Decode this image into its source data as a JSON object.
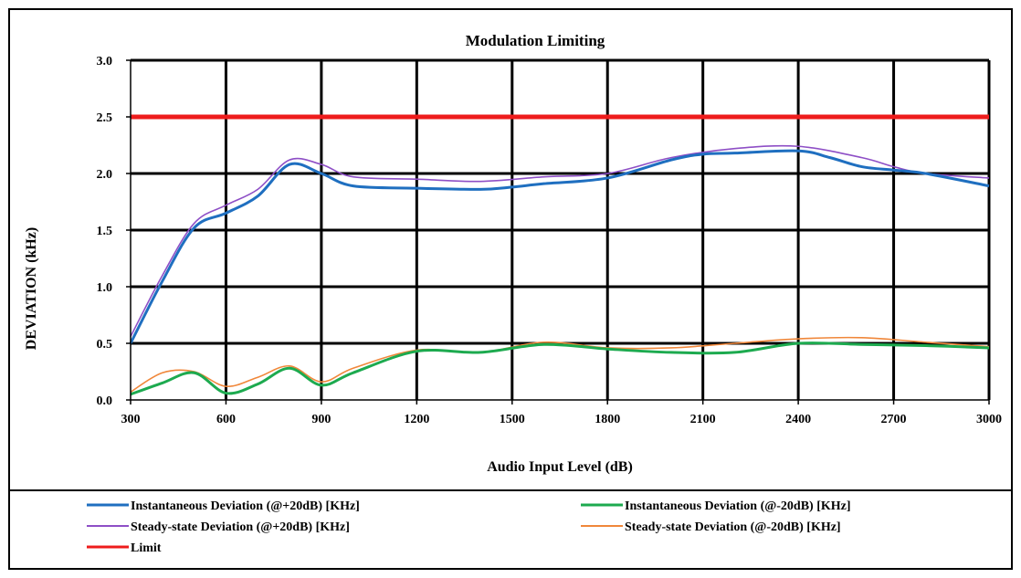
{
  "chart_data": {
    "type": "line",
    "title": "Modulation Limiting",
    "xlabel": "Audio Input Level (dB)",
    "ylabel": "DEVIATION (kHz)",
    "xlim": [
      300,
      3000
    ],
    "ylim": [
      0,
      3
    ],
    "xticks": [
      300,
      600,
      900,
      1200,
      1500,
      1800,
      2100,
      2400,
      2700,
      3000
    ],
    "xtick_labels": [
      "300",
      "600",
      "900",
      "1200",
      "1500",
      "1800",
      "2100",
      "2400",
      "2700",
      "3000"
    ],
    "yticks": [
      0,
      0.5,
      1,
      1.5,
      2,
      2.5,
      3
    ],
    "ytick_labels": [
      "0.0",
      "0.5",
      "1.0",
      "1.5",
      "2.0",
      "2.5",
      "3.0"
    ],
    "grid": true,
    "legend_position": "bottom",
    "series": [
      {
        "name": "Instantaneous Deviation (@+20dB) [KHz]",
        "color": "#1f6fc0",
        "width": 3,
        "points": [
          [
            300,
            0.5
          ],
          [
            400,
            1.05
          ],
          [
            500,
            1.52
          ],
          [
            600,
            1.65
          ],
          [
            700,
            1.8
          ],
          [
            800,
            2.08
          ],
          [
            900,
            2.0
          ],
          [
            1000,
            1.89
          ],
          [
            1200,
            1.87
          ],
          [
            1400,
            1.86
          ],
          [
            1500,
            1.88
          ],
          [
            1600,
            1.91
          ],
          [
            1800,
            1.96
          ],
          [
            2000,
            2.12
          ],
          [
            2100,
            2.17
          ],
          [
            2200,
            2.18
          ],
          [
            2400,
            2.2
          ],
          [
            2500,
            2.14
          ],
          [
            2600,
            2.06
          ],
          [
            2700,
            2.03
          ],
          [
            2800,
            2.0
          ],
          [
            3000,
            1.89
          ]
        ]
      },
      {
        "name": "Instantaneous Deviation (@-20dB) [KHz]",
        "color": "#1daa4f",
        "width": 3,
        "points": [
          [
            300,
            0.05
          ],
          [
            400,
            0.15
          ],
          [
            500,
            0.24
          ],
          [
            600,
            0.06
          ],
          [
            700,
            0.14
          ],
          [
            800,
            0.28
          ],
          [
            900,
            0.13
          ],
          [
            1000,
            0.24
          ],
          [
            1200,
            0.43
          ],
          [
            1400,
            0.42
          ],
          [
            1600,
            0.49
          ],
          [
            1800,
            0.45
          ],
          [
            2000,
            0.42
          ],
          [
            2200,
            0.42
          ],
          [
            2400,
            0.5
          ],
          [
            2600,
            0.49
          ],
          [
            2800,
            0.48
          ],
          [
            3000,
            0.46
          ]
        ]
      },
      {
        "name": "Steady-state Deviation (@+20dB) [KHz]",
        "color": "#8e4fc6",
        "width": 1.6,
        "points": [
          [
            300,
            0.56
          ],
          [
            400,
            1.1
          ],
          [
            500,
            1.56
          ],
          [
            600,
            1.72
          ],
          [
            700,
            1.86
          ],
          [
            800,
            2.12
          ],
          [
            900,
            2.08
          ],
          [
            1000,
            1.97
          ],
          [
            1200,
            1.95
          ],
          [
            1400,
            1.93
          ],
          [
            1600,
            1.97
          ],
          [
            1800,
            2.0
          ],
          [
            2000,
            2.14
          ],
          [
            2200,
            2.22
          ],
          [
            2400,
            2.24
          ],
          [
            2600,
            2.14
          ],
          [
            2700,
            2.06
          ],
          [
            2800,
            2.0
          ],
          [
            3000,
            1.96
          ]
        ]
      },
      {
        "name": "Steady-state Deviation (@-20dB) [KHz]",
        "color": "#f0873a",
        "width": 1.6,
        "points": [
          [
            300,
            0.07
          ],
          [
            400,
            0.24
          ],
          [
            500,
            0.25
          ],
          [
            600,
            0.12
          ],
          [
            700,
            0.2
          ],
          [
            800,
            0.3
          ],
          [
            900,
            0.16
          ],
          [
            1000,
            0.28
          ],
          [
            1200,
            0.44
          ],
          [
            1400,
            0.42
          ],
          [
            1600,
            0.51
          ],
          [
            1800,
            0.46
          ],
          [
            2000,
            0.46
          ],
          [
            2200,
            0.5
          ],
          [
            2400,
            0.54
          ],
          [
            2600,
            0.55
          ],
          [
            2800,
            0.51
          ],
          [
            3000,
            0.47
          ]
        ]
      },
      {
        "name": "Limit",
        "color": "#ee1c1c",
        "width": 5,
        "points": [
          [
            300,
            2.5
          ],
          [
            3000,
            2.5
          ]
        ]
      }
    ]
  }
}
